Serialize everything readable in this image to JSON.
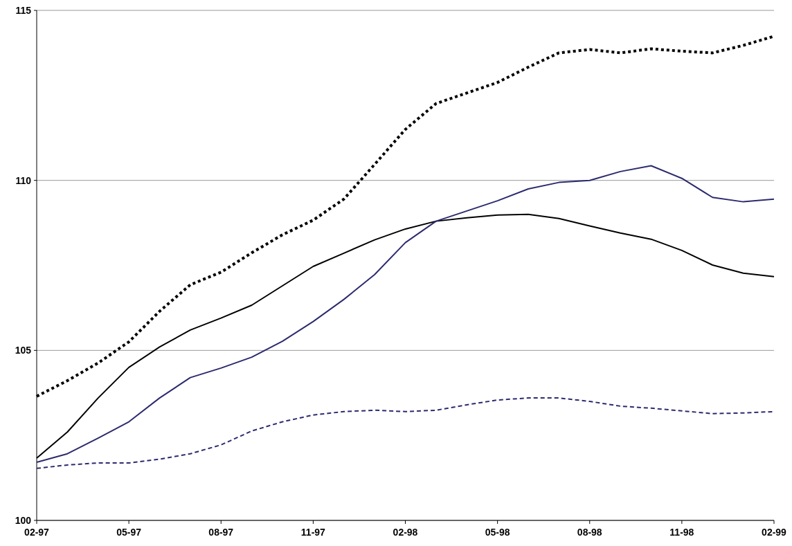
{
  "chart_data": {
    "type": "line",
    "categories": [
      "02-97",
      null,
      null,
      "05-97",
      null,
      null,
      "08-97",
      null,
      null,
      "11-97",
      null,
      null,
      "02-98",
      null,
      null,
      "05-98",
      null,
      null,
      "08-98",
      null,
      null,
      "11-98",
      null,
      null,
      "02-99"
    ],
    "ylim": [
      100,
      115
    ],
    "yticks": [
      100,
      105,
      110,
      115
    ],
    "grid": "y",
    "marker": "none",
    "series": [
      {
        "color": "#000000",
        "line_style": "solid",
        "values": [
          101.83,
          102.6,
          103.6,
          104.5,
          105.1,
          105.6,
          105.95,
          106.33,
          106.9,
          107.47,
          107.86,
          108.25,
          108.57,
          108.8,
          108.9,
          108.98,
          109.0,
          108.88,
          108.66,
          108.45,
          108.27,
          107.94,
          107.51,
          107.27,
          107.17
        ]
      },
      {
        "color": "#2b2a6e",
        "line_style": "solid",
        "values": [
          101.71,
          101.96,
          102.42,
          102.9,
          103.6,
          104.2,
          104.48,
          104.8,
          105.27,
          105.85,
          106.5,
          107.23,
          108.17,
          108.8,
          109.1,
          109.4,
          109.75,
          109.94,
          110.0,
          110.26,
          110.43,
          110.06,
          109.5,
          109.37,
          109.45
        ]
      },
      {
        "color": "#000000",
        "line_style": "dotted",
        "values": [
          103.65,
          104.11,
          104.63,
          105.25,
          106.15,
          106.93,
          107.3,
          107.87,
          108.4,
          108.83,
          109.45,
          110.47,
          111.5,
          112.26,
          112.57,
          112.88,
          113.33,
          113.75,
          113.85,
          113.75,
          113.87,
          113.8,
          113.75,
          113.97,
          114.24
        ]
      },
      {
        "color": "#2b2a6e",
        "line_style": "dashed",
        "values": [
          101.53,
          101.63,
          101.69,
          101.69,
          101.8,
          101.96,
          102.22,
          102.63,
          102.9,
          103.1,
          103.2,
          103.24,
          103.2,
          103.24,
          103.4,
          103.54,
          103.6,
          103.6,
          103.5,
          103.36,
          103.3,
          103.22,
          103.14,
          103.16,
          103.2
        ]
      }
    ]
  }
}
